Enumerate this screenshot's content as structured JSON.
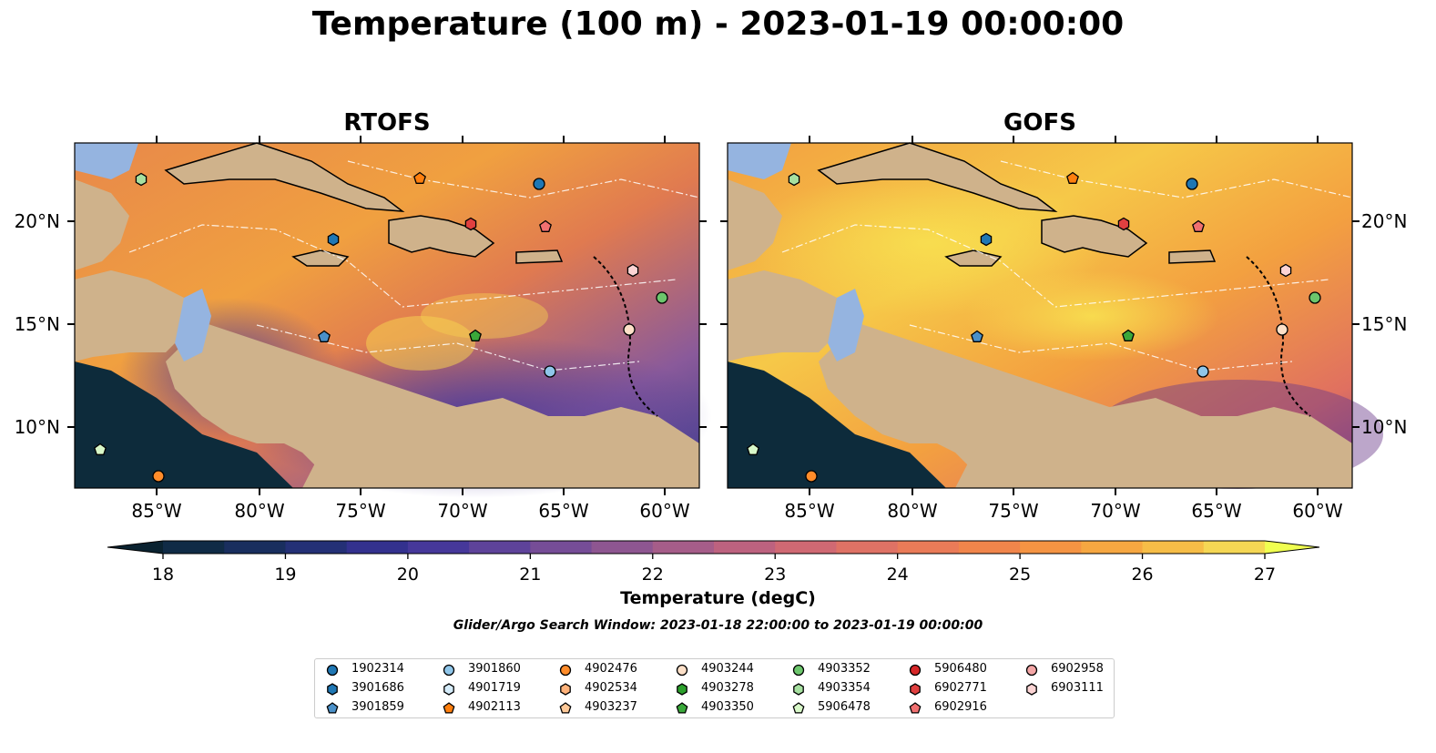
{
  "title": "Temperature (100 m) - 2023-01-19 00:00:00",
  "panels": [
    {
      "title": "RTOFS"
    },
    {
      "title": "GOFS"
    }
  ],
  "lon_ticks": [
    "85°W",
    "80°W",
    "75°W",
    "70°W",
    "65°W",
    "60°W"
  ],
  "lat_ticks": [
    "20°N",
    "15°N",
    "10°N"
  ],
  "colorbar": {
    "label": "Temperature (degC)",
    "ticks": [
      "18",
      "19",
      "20",
      "21",
      "22",
      "23",
      "24",
      "25",
      "26",
      "27"
    ],
    "range": [
      18,
      27
    ],
    "step": 0.5,
    "extend": "both"
  },
  "search_window": "Glider/Argo Search Window: 2023-01-18 22:00:00 to 2023-01-19 00:00:00",
  "legend": [
    {
      "id": "1902314",
      "marker": "circle",
      "color": "#1f77b4"
    },
    {
      "id": "3901686",
      "marker": "hexagon",
      "color": "#1f77b4"
    },
    {
      "id": "3901859",
      "marker": "pentagon",
      "color": "#4a90c8"
    },
    {
      "id": "3901860",
      "marker": "circle",
      "color": "#8fc6ea"
    },
    {
      "id": "4901719",
      "marker": "hexagon",
      "color": "#d5ecfa"
    },
    {
      "id": "4902113",
      "marker": "pentagon",
      "color": "#ff7f0e"
    },
    {
      "id": "4902476",
      "marker": "circle",
      "color": "#ff8c2a"
    },
    {
      "id": "4902534",
      "marker": "hexagon",
      "color": "#ffb27a"
    },
    {
      "id": "4903237",
      "marker": "pentagon",
      "color": "#ffc998"
    },
    {
      "id": "4903244",
      "marker": "circle",
      "color": "#fde0c8"
    },
    {
      "id": "4903278",
      "marker": "hexagon",
      "color": "#2ca02c"
    },
    {
      "id": "4903350",
      "marker": "pentagon",
      "color": "#3aa83a"
    },
    {
      "id": "4903352",
      "marker": "circle",
      "color": "#6cc66c"
    },
    {
      "id": "4903354",
      "marker": "hexagon",
      "color": "#a6e0a0"
    },
    {
      "id": "5906478",
      "marker": "pentagon",
      "color": "#d8f8c8"
    },
    {
      "id": "5906480",
      "marker": "circle",
      "color": "#d62728"
    },
    {
      "id": "6902771",
      "marker": "hexagon",
      "color": "#e04040"
    },
    {
      "id": "6902916",
      "marker": "pentagon",
      "color": "#f07070"
    },
    {
      "id": "6902958",
      "marker": "circle",
      "color": "#f4a6a6"
    },
    {
      "id": "6903111",
      "marker": "hexagon",
      "color": "#fcd4d4"
    }
  ],
  "colors": {
    "land": "#cfb28b",
    "shallow_water": "#95b4e0",
    "deep_cold": "#0d2b3b"
  }
}
